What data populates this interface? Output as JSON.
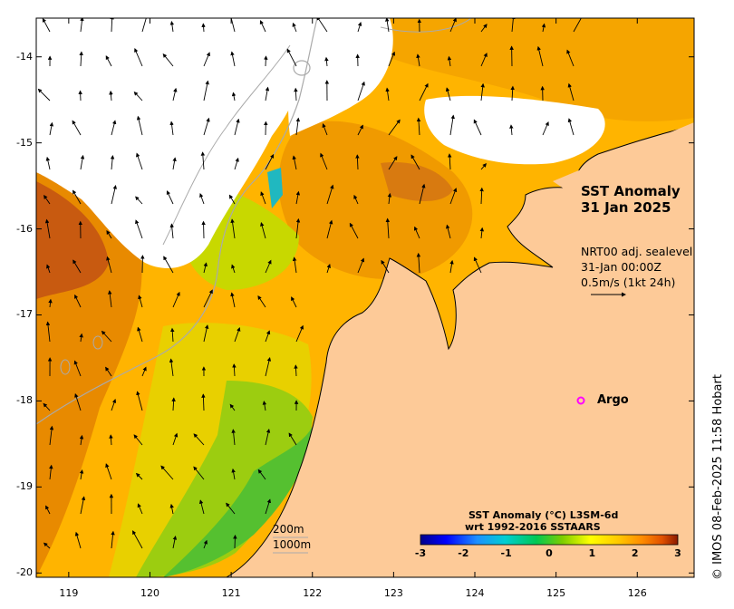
{
  "map": {
    "title_line1": "SST Anomaly",
    "title_line2": "31 Jan 2025",
    "current_source": "NRT00 adj. sealevel",
    "current_time": "31-Jan 00:00Z",
    "current_scale": "0.5m/s (1kt 24h)",
    "argo_label": "Argo",
    "isobath_200": "200m",
    "isobath_1000": "1000m",
    "credit": "© IMOS 08-Feb-2025 11:58 Hobart",
    "lat_ticks": [
      "-14",
      "-15",
      "-16",
      "-17",
      "-18",
      "-19",
      "-20"
    ],
    "lon_ticks": [
      "119",
      "120",
      "121",
      "122",
      "123",
      "124",
      "125",
      "126"
    ],
    "lon_range": [
      118.6,
      126.7
    ],
    "lat_range": [
      -20.05,
      -13.55
    ]
  },
  "colorbar": {
    "title_line1": "SST Anomaly (°C) L3SM-6d",
    "title_line2": "wrt 1992-2016 SSTAARS",
    "ticks": [
      "-3",
      "-2",
      "-1",
      "0",
      "1",
      "2",
      "3"
    ],
    "range": [
      -3,
      3
    ],
    "colors": [
      "#00008b",
      "#0000ff",
      "#1e90ff",
      "#00ced1",
      "#00c853",
      "#7ccd00",
      "#ffff00",
      "#ffc800",
      "#ff8c00",
      "#e05000",
      "#8b1a00"
    ]
  },
  "colors": {
    "land": "#fdca98",
    "no_data": "#ffffff",
    "argo": "#ff00ff"
  }
}
